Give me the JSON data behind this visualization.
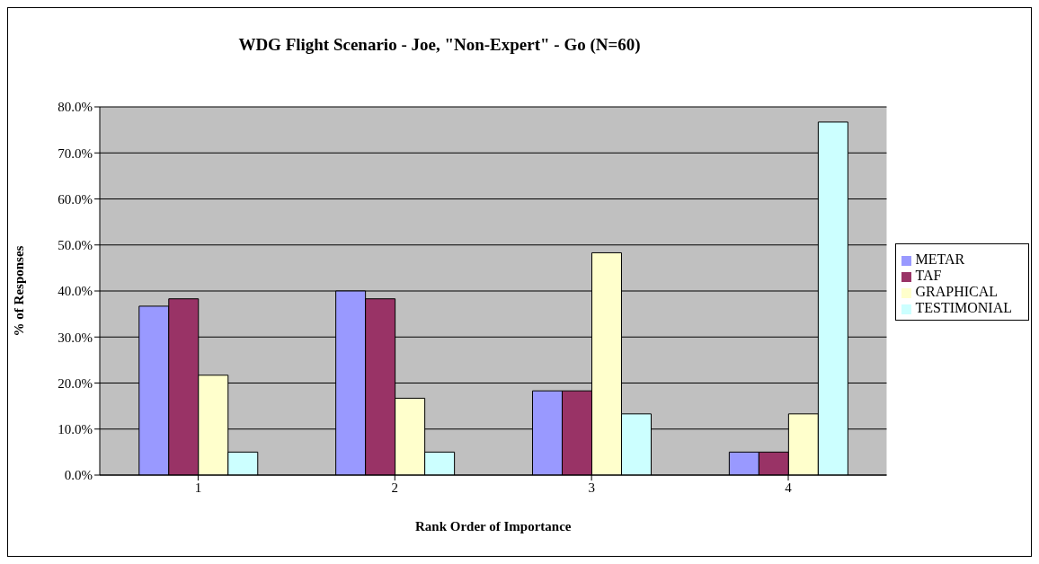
{
  "chart_data": {
    "type": "bar",
    "title": "WDG Flight Scenario - Joe, \"Non-Expert\" - Go (N=60)",
    "xlabel": "Rank Order of Importance",
    "ylabel": "% of Responses",
    "categories": [
      "1",
      "2",
      "3",
      "4"
    ],
    "series": [
      {
        "name": "METAR",
        "color": "#9999ff",
        "values": [
          36.7,
          40.0,
          18.3,
          5.0
        ]
      },
      {
        "name": "TAF",
        "color": "#993366",
        "values": [
          38.3,
          38.3,
          18.3,
          5.0
        ]
      },
      {
        "name": "GRAPHICAL",
        "color": "#ffffcc",
        "values": [
          21.7,
          16.7,
          48.3,
          13.3
        ]
      },
      {
        "name": "TESTIMONIAL",
        "color": "#ccffff",
        "values": [
          5.0,
          5.0,
          13.3,
          76.7
        ]
      }
    ],
    "ylim": [
      0,
      80
    ],
    "yticks": [
      {
        "value": 0,
        "label": "0.0%"
      },
      {
        "value": 10,
        "label": "10.0%"
      },
      {
        "value": 20,
        "label": "20.0%"
      },
      {
        "value": 30,
        "label": "30.0%"
      },
      {
        "value": 40,
        "label": "40.0%"
      },
      {
        "value": 50,
        "label": "50.0%"
      },
      {
        "value": 60,
        "label": "60.0%"
      },
      {
        "value": 70,
        "label": "70.0%"
      },
      {
        "value": 80,
        "label": "80.0%"
      }
    ],
    "grid": "y",
    "legend": "right"
  }
}
